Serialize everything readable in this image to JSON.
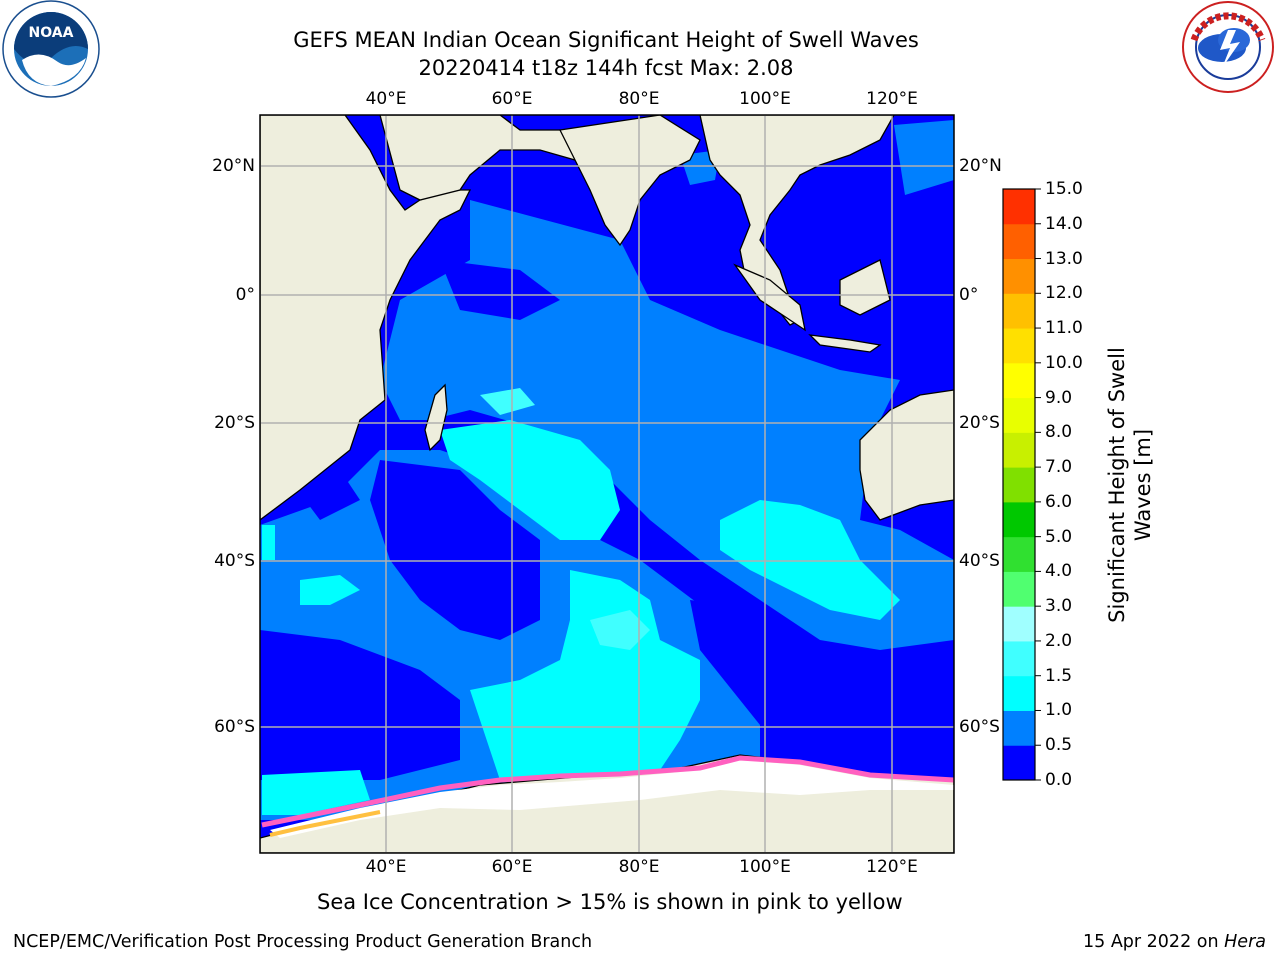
{
  "title": {
    "line1": "GEFS MEAN Indian Ocean Significant Height of Swell Waves",
    "line2": "20220414 t18z 144h fcst   Max: 2.08"
  },
  "logos": {
    "left": {
      "text": "NOAA",
      "icon": "noaa-logo"
    },
    "right": {
      "text": "NATIONAL WEATHER SERVICE",
      "icon": "nws-logo"
    }
  },
  "map": {
    "lon_labels_top": [
      "40°E",
      "60°E",
      "80°E",
      "100°E",
      "120°E"
    ],
    "lon_labels_bottom": [
      "40°E",
      "60°E",
      "80°E",
      "100°E",
      "120°E"
    ],
    "lat_labels_left": [
      "20°N",
      "0°",
      "20°S",
      "40°S",
      "60°S"
    ],
    "lat_labels_right": [
      "20°N",
      "0°",
      "20°S",
      "40°S",
      "60°S"
    ],
    "lon_range": [
      20,
      130
    ],
    "lat_range": [
      -74,
      28
    ],
    "gridlines": true
  },
  "colorbar": {
    "label": "Significant Height of Swell Waves [m]",
    "ticks": [
      "15.0",
      "14.0",
      "13.0",
      "12.0",
      "11.0",
      "10.0",
      "9.0",
      "8.0",
      "7.0",
      "6.0",
      "5.0",
      "4.0",
      "3.0",
      "2.0",
      "1.5",
      "1.0",
      "0.5",
      "0.0"
    ],
    "colors": [
      "#0000ff",
      "#0080ff",
      "#00ffff",
      "#40ffff",
      "#a0ffff",
      "#50ff70",
      "#30e030",
      "#00c800",
      "#80e000",
      "#c8f000",
      "#e8ff00",
      "#ffff00",
      "#ffe000",
      "#ffc000",
      "#ff9000",
      "#ff6000",
      "#ff3000",
      "#ff0000"
    ]
  },
  "note": "Sea Ice Concentration > 15% is shown in pink to yellow",
  "footer": {
    "left": "NCEP/EMC/Verification Post Processing Product Generation Branch",
    "right_prefix": "15 Apr 2022 on ",
    "right_host": "Hera"
  }
}
